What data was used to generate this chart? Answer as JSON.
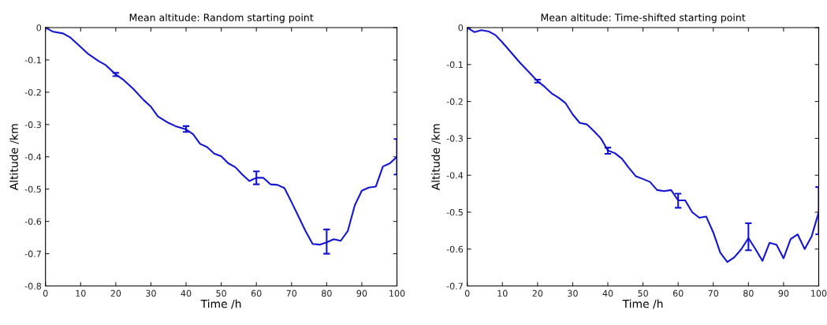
{
  "chart_data": [
    {
      "type": "line",
      "title": "Mean altitude: Random starting point",
      "xlabel": "Time /h",
      "ylabel": "Altitude /km",
      "xlim": [
        0,
        100
      ],
      "ylim": [
        -0.8,
        0
      ],
      "xticks": [
        0,
        10,
        20,
        30,
        40,
        50,
        60,
        70,
        80,
        90,
        100
      ],
      "yticks": [
        -0.8,
        -0.7,
        -0.6,
        -0.5,
        -0.4,
        -0.3,
        -0.2,
        -0.1,
        0
      ],
      "grid": false,
      "x": [
        0,
        2,
        5,
        7,
        10,
        12,
        15,
        17,
        20,
        22,
        25,
        28,
        30,
        32,
        35,
        37,
        40,
        42,
        44,
        46,
        48,
        50,
        52,
        54,
        56,
        58,
        60,
        62,
        64,
        66,
        68,
        70,
        72,
        74,
        76,
        78,
        80,
        82,
        84,
        86,
        88,
        90,
        92,
        94,
        96,
        98,
        100
      ],
      "series": [
        {
          "color": "#1515d0",
          "values": [
            0,
            -0.012,
            -0.018,
            -0.03,
            -0.06,
            -0.08,
            -0.103,
            -0.115,
            -0.145,
            -0.16,
            -0.19,
            -0.225,
            -0.245,
            -0.275,
            -0.295,
            -0.305,
            -0.315,
            -0.33,
            -0.36,
            -0.37,
            -0.39,
            -0.398,
            -0.42,
            -0.432,
            -0.455,
            -0.475,
            -0.465,
            -0.465,
            -0.485,
            -0.487,
            -0.497,
            -0.54,
            -0.585,
            -0.63,
            -0.67,
            -0.672,
            -0.665,
            -0.655,
            -0.66,
            -0.63,
            -0.55,
            -0.505,
            -0.495,
            -0.492,
            -0.43,
            -0.42,
            -0.4
          ],
          "errors": [
            null,
            null,
            null,
            null,
            null,
            null,
            null,
            null,
            [
              -0.15,
              -0.14
            ],
            null,
            null,
            null,
            null,
            null,
            null,
            null,
            [
              -0.323,
              -0.305
            ],
            null,
            null,
            null,
            null,
            null,
            null,
            null,
            null,
            null,
            [
              -0.485,
              -0.445
            ],
            null,
            null,
            null,
            null,
            null,
            null,
            null,
            null,
            null,
            [
              -0.7,
              -0.625
            ],
            null,
            null,
            null,
            null,
            null,
            null,
            null,
            null,
            null,
            [
              -0.455,
              -0.345
            ]
          ]
        }
      ]
    },
    {
      "type": "line",
      "title": "Mean altitude: Time-shifted starting point",
      "xlabel": "Time /h",
      "ylabel": "Altitude /km",
      "xlim": [
        0,
        100
      ],
      "ylim": [
        -0.7,
        0
      ],
      "xticks": [
        0,
        10,
        20,
        30,
        40,
        50,
        60,
        70,
        80,
        90,
        100
      ],
      "yticks": [
        -0.7,
        -0.6,
        -0.5,
        -0.4,
        -0.3,
        -0.2,
        -0.1,
        0
      ],
      "grid": false,
      "x": [
        0,
        2,
        4,
        6,
        8,
        10,
        12,
        15,
        18,
        20,
        22,
        24,
        26,
        28,
        30,
        32,
        34,
        36,
        38,
        40,
        42,
        44,
        46,
        48,
        50,
        52,
        54,
        56,
        58,
        60,
        62,
        64,
        66,
        68,
        70,
        72,
        74,
        76,
        78,
        80,
        82,
        84,
        86,
        88,
        90,
        92,
        94,
        96,
        98,
        100
      ],
      "series": [
        {
          "color": "#1515d0",
          "values": [
            0,
            -0.012,
            -0.007,
            -0.01,
            -0.02,
            -0.04,
            -0.062,
            -0.095,
            -0.125,
            -0.145,
            -0.16,
            -0.178,
            -0.19,
            -0.205,
            -0.235,
            -0.258,
            -0.262,
            -0.28,
            -0.3,
            -0.333,
            -0.34,
            -0.355,
            -0.38,
            -0.403,
            -0.41,
            -0.418,
            -0.44,
            -0.443,
            -0.44,
            -0.468,
            -0.468,
            -0.5,
            -0.515,
            -0.512,
            -0.555,
            -0.61,
            -0.635,
            -0.622,
            -0.6,
            -0.57,
            -0.6,
            -0.632,
            -0.583,
            -0.588,
            -0.625,
            -0.573,
            -0.56,
            -0.6,
            -0.565,
            -0.5
          ],
          "errors": [
            null,
            null,
            null,
            null,
            null,
            null,
            null,
            null,
            null,
            [
              -0.149,
              -0.141
            ],
            null,
            null,
            null,
            null,
            null,
            null,
            null,
            null,
            null,
            [
              -0.342,
              -0.325
            ],
            null,
            null,
            null,
            null,
            null,
            null,
            null,
            null,
            null,
            [
              -0.488,
              -0.45
            ],
            null,
            null,
            null,
            null,
            null,
            null,
            null,
            null,
            null,
            [
              -0.603,
              -0.53
            ],
            null,
            null,
            null,
            null,
            null,
            null,
            null,
            null,
            null,
            [
              -0.56,
              -0.432
            ]
          ]
        }
      ]
    }
  ]
}
